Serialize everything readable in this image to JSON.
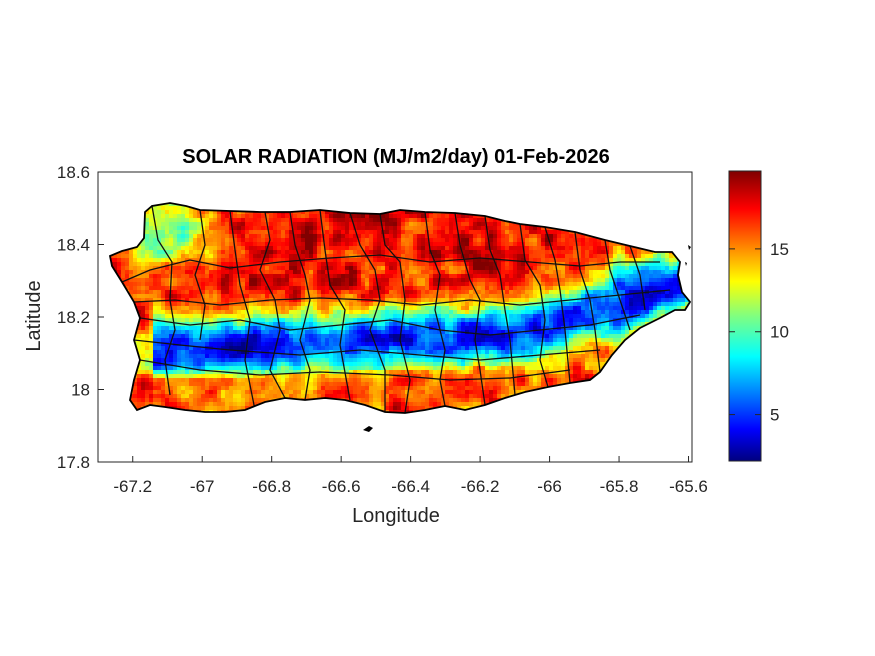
{
  "map": {
    "title": "SOLAR RADIATION (MJ/m2/day) 01-Feb-2026",
    "xlabel": "Longitude",
    "ylabel": "Latitude",
    "x_ticks": [
      "-67.2",
      "-67",
      "-66.8",
      "-66.6",
      "-66.4",
      "-66.2",
      "-66",
      "-65.8",
      "-65.6"
    ],
    "y_ticks": [
      "18.6",
      "18.4",
      "18.2",
      "18",
      "17.8"
    ],
    "colorbar_ticks": [
      "15",
      "10",
      "5"
    ],
    "colormap": "jet",
    "colors": {
      "high": "#7f0000",
      "mid_high": "#ff2000",
      "mid": "#ffff00",
      "mid_low": "#00ffff",
      "low": "#0000cc",
      "lowest": "#00007f",
      "outline": "#000000"
    }
  },
  "chart_data": {
    "type": "heatmap",
    "title": "SOLAR RADIATION (MJ/m2/day) 01-Feb-2026",
    "xlabel": "Longitude",
    "ylabel": "Latitude",
    "xlim": [
      -67.3,
      -65.59
    ],
    "ylim": [
      17.8,
      18.6
    ],
    "colorbar_range": [
      2.2,
      19.7
    ],
    "colorbar_ticks": [
      5,
      10,
      15
    ],
    "pattern": {
      "north_coast": 17.5,
      "central_band_minimum": 4.5,
      "south_coast": 15.5,
      "west_coast": 17.5,
      "northwest_corner": 10,
      "east_minimum": 6
    }
  }
}
